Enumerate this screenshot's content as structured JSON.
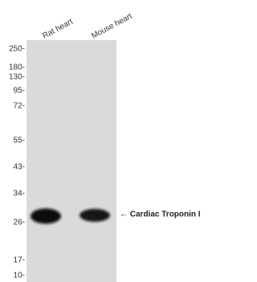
{
  "lanes": [
    "Rat heart",
    "Mouse heart"
  ],
  "markers": [
    "250-",
    "180-",
    "130-",
    "95-",
    "72-",
    "55-",
    "43-",
    "34-",
    "26-",
    "17-",
    "10-"
  ],
  "annotation": "← Cardiac Troponin I"
}
